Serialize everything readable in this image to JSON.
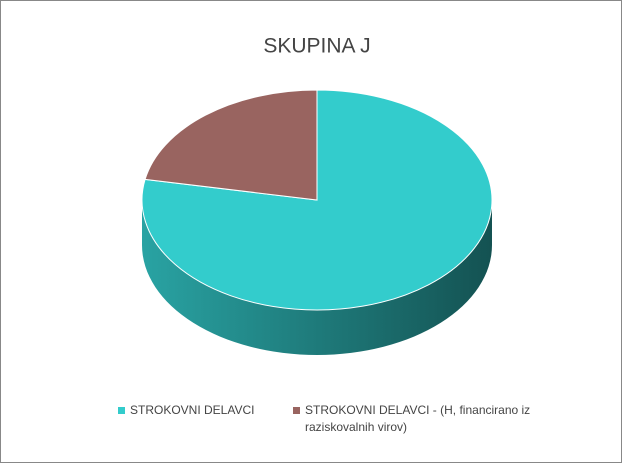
{
  "chart_data": {
    "type": "pie",
    "title": "SKUPINA J",
    "categories": [
      "STROKOVNI DELAVCI",
      "STROKOVNI DELAVCI - (H, financirano iz raziskovalnih virov)"
    ],
    "values": [
      78,
      22
    ],
    "colors": [
      "#33cccc",
      "#996460"
    ],
    "legend": "bottom"
  }
}
